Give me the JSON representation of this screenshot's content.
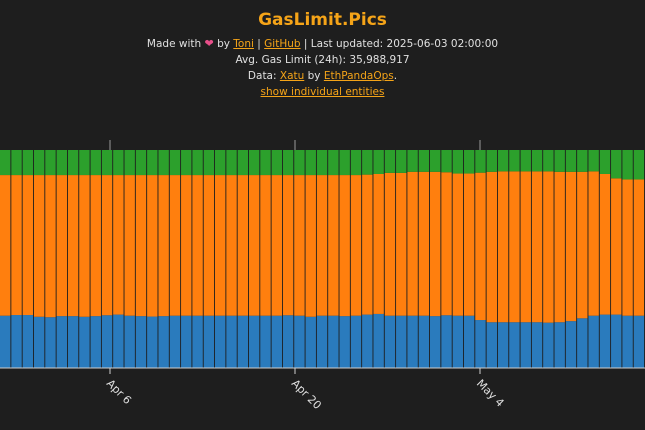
{
  "header": {
    "title": "GasLimit.Pics",
    "made_with": "Made with",
    "heart": "❤",
    "by": "by",
    "author": "Toni",
    "sep1": "|",
    "github": "GitHub",
    "sep2": "|",
    "last_updated": "Last updated: 2025-06-03 02:00:00",
    "avg": "Avg. Gas Limit (24h): 35,988,917",
    "data_prefix": "Data:",
    "data_source": "Xatu",
    "data_by": "by",
    "data_org": "EthPandaOps",
    "data_suffix": ".",
    "toggle": "show individual entities"
  },
  "chart_data": {
    "type": "bar",
    "stacked": true,
    "normalized": true,
    "grid": false,
    "legend": "none",
    "x_ticks": [
      "Apr 6",
      "Apr 20",
      "May 4"
    ],
    "series": [
      {
        "color": "#2a7bbd",
        "values": [
          0.24,
          0.243,
          0.243,
          0.235,
          0.233,
          0.238,
          0.238,
          0.235,
          0.238,
          0.242,
          0.245,
          0.24,
          0.238,
          0.236,
          0.238,
          0.24,
          0.24,
          0.24,
          0.24,
          0.24,
          0.24,
          0.24,
          0.24,
          0.24,
          0.24,
          0.242,
          0.24,
          0.235,
          0.24,
          0.24,
          0.238,
          0.24,
          0.245,
          0.248,
          0.24,
          0.24,
          0.24,
          0.24,
          0.238,
          0.242,
          0.24,
          0.24,
          0.22,
          0.21,
          0.21,
          0.21,
          0.21,
          0.21,
          0.208,
          0.21,
          0.215,
          0.228,
          0.24,
          0.245,
          0.245,
          0.24,
          0.24
        ]
      },
      {
        "color": "#ff7f0e",
        "values": [
          0.645,
          0.642,
          0.642,
          0.65,
          0.652,
          0.647,
          0.647,
          0.65,
          0.647,
          0.643,
          0.64,
          0.645,
          0.647,
          0.649,
          0.647,
          0.645,
          0.645,
          0.645,
          0.645,
          0.645,
          0.645,
          0.645,
          0.645,
          0.645,
          0.645,
          0.643,
          0.645,
          0.65,
          0.645,
          0.645,
          0.647,
          0.645,
          0.642,
          0.642,
          0.655,
          0.655,
          0.66,
          0.66,
          0.662,
          0.656,
          0.652,
          0.652,
          0.676,
          0.69,
          0.692,
          0.692,
          0.692,
          0.692,
          0.694,
          0.69,
          0.685,
          0.672,
          0.662,
          0.645,
          0.625,
          0.625,
          0.625
        ]
      },
      {
        "color": "#2ca02c",
        "values": [
          0.115,
          0.115,
          0.115,
          0.115,
          0.115,
          0.115,
          0.115,
          0.115,
          0.115,
          0.115,
          0.115,
          0.115,
          0.115,
          0.115,
          0.115,
          0.115,
          0.115,
          0.115,
          0.115,
          0.115,
          0.115,
          0.115,
          0.115,
          0.115,
          0.115,
          0.115,
          0.115,
          0.115,
          0.115,
          0.115,
          0.115,
          0.115,
          0.113,
          0.11,
          0.105,
          0.105,
          0.1,
          0.1,
          0.1,
          0.102,
          0.108,
          0.108,
          0.104,
          0.1,
          0.098,
          0.098,
          0.098,
          0.098,
          0.098,
          0.1,
          0.1,
          0.1,
          0.098,
          0.11,
          0.13,
          0.135,
          0.135
        ]
      }
    ]
  }
}
